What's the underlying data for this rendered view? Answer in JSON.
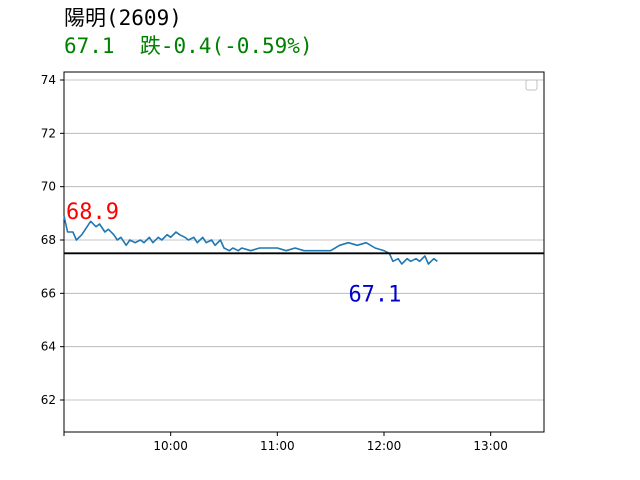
{
  "header": {
    "stock_title": "陽明(2609)",
    "price": "67.1",
    "change_text": "跌-0.4(-0.59%)",
    "price_color": "#008000"
  },
  "chart_data": {
    "type": "line",
    "title": "陽明(2609)",
    "xlabel": "",
    "ylabel": "",
    "x_ticks": [
      "10:00",
      "11:00",
      "12:00",
      "13:00"
    ],
    "y_ticks": [
      62,
      64,
      66,
      68,
      70,
      72,
      74
    ],
    "xlim": [
      "09:00",
      "13:30"
    ],
    "ylim": [
      60.8,
      74.3
    ],
    "grid": "horizontal",
    "reference_line": {
      "value": 67.5,
      "color": "#000000"
    },
    "series": [
      {
        "color": "#1f77b4",
        "x": [
          "09:00",
          "09:02",
          "09:05",
          "09:07",
          "09:10",
          "09:13",
          "09:15",
          "09:18",
          "09:20",
          "09:23",
          "09:25",
          "09:28",
          "09:30",
          "09:32",
          "09:35",
          "09:37",
          "09:40",
          "09:43",
          "09:45",
          "09:48",
          "09:50",
          "09:53",
          "09:55",
          "09:58",
          "10:00",
          "10:03",
          "10:05",
          "10:08",
          "10:10",
          "10:13",
          "10:15",
          "10:18",
          "10:20",
          "10:23",
          "10:25",
          "10:28",
          "10:30",
          "10:33",
          "10:35",
          "10:38",
          "10:40",
          "10:45",
          "10:50",
          "10:55",
          "11:00",
          "11:05",
          "11:10",
          "11:15",
          "11:20",
          "11:25",
          "11:30",
          "11:35",
          "11:40",
          "11:45",
          "11:50",
          "11:55",
          "12:00",
          "12:03",
          "12:05",
          "12:08",
          "12:10",
          "12:13",
          "12:15",
          "12:18",
          "12:20",
          "12:23",
          "12:25",
          "12:28",
          "12:30"
        ],
        "values": [
          68.9,
          68.3,
          68.3,
          68.0,
          68.2,
          68.5,
          68.7,
          68.5,
          68.6,
          68.3,
          68.4,
          68.2,
          68.0,
          68.1,
          67.8,
          68.0,
          67.9,
          68.0,
          67.9,
          68.1,
          67.9,
          68.1,
          68.0,
          68.2,
          68.1,
          68.3,
          68.2,
          68.1,
          68.0,
          68.1,
          67.9,
          68.1,
          67.9,
          68.0,
          67.8,
          68.0,
          67.7,
          67.6,
          67.7,
          67.6,
          67.7,
          67.6,
          67.7,
          67.7,
          67.7,
          67.6,
          67.7,
          67.6,
          67.6,
          67.6,
          67.6,
          67.8,
          67.9,
          67.8,
          67.9,
          67.7,
          67.6,
          67.5,
          67.2,
          67.3,
          67.1,
          67.3,
          67.2,
          67.3,
          67.2,
          67.4,
          67.1,
          67.3,
          67.2
        ]
      }
    ],
    "annotations": [
      {
        "text": "68.9",
        "color": "#ff0000"
      },
      {
        "text": "67.1",
        "color": "#0000cc"
      }
    ]
  }
}
